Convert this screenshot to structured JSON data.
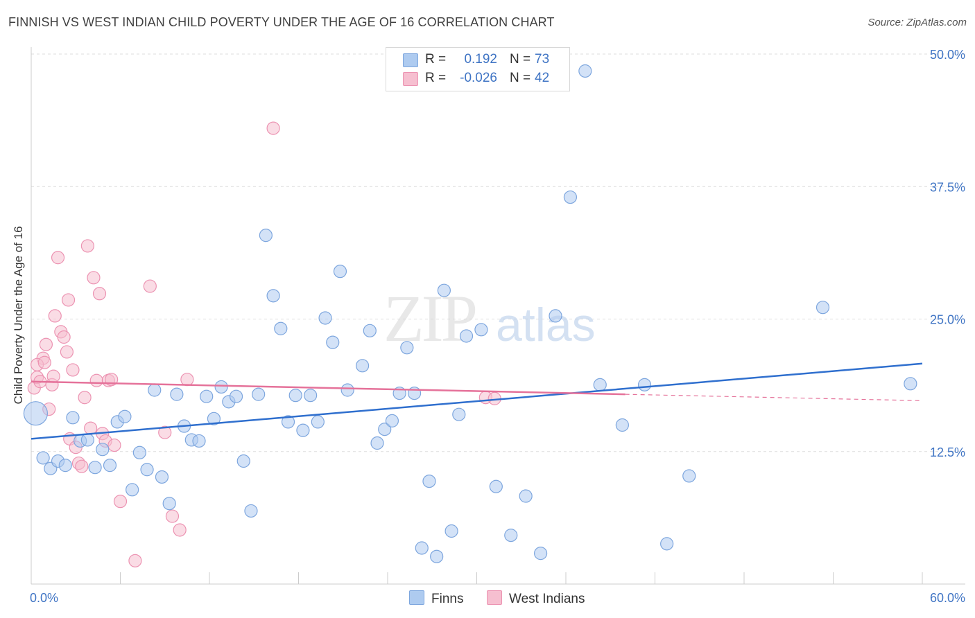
{
  "title": "FINNISH VS WEST INDIAN CHILD POVERTY UNDER THE AGE OF 16 CORRELATION CHART",
  "source": "Source: ZipAtlas.com",
  "watermark": {
    "zip": "ZIP",
    "atlas": "atlas"
  },
  "legend": {
    "rows": [
      {
        "r_label": "R =",
        "r_value": "0.192",
        "n_label": "N =",
        "n_value": "73"
      },
      {
        "r_label": "R =",
        "r_value": "-0.026",
        "n_label": "N =",
        "n_value": "42"
      }
    ]
  },
  "bottom_legend": {
    "finns": "Finns",
    "west_indians": "West Indians"
  },
  "colors": {
    "finns_fill": "#aecbf0",
    "finns_stroke": "#7da6de",
    "finns_line": "#2f6fce",
    "wi_fill": "#f6bfd0",
    "wi_stroke": "#ec93b2",
    "wi_line": "#e5729a",
    "grid": "#dddddd",
    "tick_label": "#3f74c4"
  },
  "chart_data": {
    "type": "scatter",
    "title": "FINNISH VS WEST INDIAN CHILD POVERTY UNDER THE AGE OF 16 CORRELATION CHART",
    "xlabel": "",
    "ylabel": "Child Poverty Under the Age of 16",
    "xlim": [
      0,
      60
    ],
    "ylim": [
      0,
      50
    ],
    "x_tick_labels": [
      "0.0%",
      "60.0%"
    ],
    "y_ticks": [
      12.5,
      25.0,
      37.5,
      50.0
    ],
    "y_tick_labels": [
      "12.5%",
      "25.0%",
      "37.5%",
      "50.0%"
    ],
    "grid": "horizontal dashed",
    "legend_position": "bottom-center",
    "series": [
      {
        "name": "Finns",
        "r": 0.192,
        "n": 73,
        "trend": {
          "x": [
            0,
            60
          ],
          "y": [
            13.7,
            20.8
          ]
        },
        "points": [
          [
            0.3,
            16.1
          ],
          [
            0.8,
            11.9
          ],
          [
            1.3,
            10.9
          ],
          [
            1.8,
            11.6
          ],
          [
            2.3,
            11.2
          ],
          [
            2.8,
            15.7
          ],
          [
            3.3,
            13.5
          ],
          [
            3.8,
            13.6
          ],
          [
            4.3,
            11.0
          ],
          [
            4.8,
            12.7
          ],
          [
            5.3,
            11.2
          ],
          [
            5.8,
            15.3
          ],
          [
            6.3,
            15.8
          ],
          [
            6.8,
            8.9
          ],
          [
            7.3,
            12.4
          ],
          [
            7.8,
            10.8
          ],
          [
            8.3,
            18.3
          ],
          [
            8.8,
            10.1
          ],
          [
            9.3,
            7.6
          ],
          [
            9.8,
            17.9
          ],
          [
            10.3,
            14.9
          ],
          [
            10.8,
            13.6
          ],
          [
            11.3,
            13.5
          ],
          [
            11.8,
            17.7
          ],
          [
            12.3,
            15.6
          ],
          [
            12.8,
            18.6
          ],
          [
            13.3,
            17.2
          ],
          [
            13.8,
            17.7
          ],
          [
            14.3,
            11.6
          ],
          [
            14.8,
            6.9
          ],
          [
            15.3,
            17.9
          ],
          [
            15.8,
            32.9
          ],
          [
            16.3,
            27.2
          ],
          [
            16.8,
            24.1
          ],
          [
            17.3,
            15.3
          ],
          [
            17.8,
            17.8
          ],
          [
            18.3,
            14.5
          ],
          [
            18.8,
            17.8
          ],
          [
            19.3,
            15.3
          ],
          [
            19.8,
            25.1
          ],
          [
            20.3,
            22.8
          ],
          [
            20.8,
            29.5
          ],
          [
            21.3,
            18.3
          ],
          [
            22.3,
            20.6
          ],
          [
            22.8,
            23.9
          ],
          [
            23.3,
            13.3
          ],
          [
            23.8,
            14.6
          ],
          [
            24.3,
            15.4
          ],
          [
            24.8,
            18.0
          ],
          [
            25.3,
            22.3
          ],
          [
            25.8,
            18.0
          ],
          [
            26.3,
            3.4
          ],
          [
            26.8,
            9.7
          ],
          [
            27.3,
            2.6
          ],
          [
            28.3,
            5.0
          ],
          [
            28.8,
            16.0
          ],
          [
            29.3,
            23.4
          ],
          [
            30.3,
            24.0
          ],
          [
            31.3,
            9.2
          ],
          [
            32.3,
            4.6
          ],
          [
            33.3,
            8.3
          ],
          [
            34.3,
            2.9
          ],
          [
            35.3,
            25.3
          ],
          [
            36.3,
            36.5
          ],
          [
            37.3,
            48.4
          ],
          [
            38.3,
            18.8
          ],
          [
            39.8,
            15.0
          ],
          [
            41.3,
            18.8
          ],
          [
            42.8,
            3.8
          ],
          [
            44.3,
            10.2
          ],
          [
            53.3,
            26.1
          ],
          [
            59.2,
            18.9
          ],
          [
            27.8,
            27.7
          ]
        ]
      },
      {
        "name": "West Indians",
        "r": -0.026,
        "n": 42,
        "trend": {
          "x": [
            0,
            40
          ],
          "y": [
            19.1,
            17.9
          ]
        },
        "points": [
          [
            0.2,
            18.5
          ],
          [
            0.4,
            19.5
          ],
          [
            0.6,
            19.1
          ],
          [
            0.8,
            21.3
          ],
          [
            1.0,
            22.6
          ],
          [
            1.2,
            16.5
          ],
          [
            1.4,
            18.8
          ],
          [
            1.6,
            25.3
          ],
          [
            1.8,
            30.8
          ],
          [
            2.0,
            23.8
          ],
          [
            2.2,
            23.3
          ],
          [
            2.4,
            21.9
          ],
          [
            2.6,
            13.7
          ],
          [
            2.8,
            20.2
          ],
          [
            3.0,
            12.9
          ],
          [
            3.2,
            11.4
          ],
          [
            3.4,
            11.1
          ],
          [
            3.6,
            17.6
          ],
          [
            3.8,
            31.9
          ],
          [
            4.0,
            14.7
          ],
          [
            4.2,
            28.9
          ],
          [
            4.4,
            19.2
          ],
          [
            4.6,
            27.4
          ],
          [
            4.8,
            14.2
          ],
          [
            5.0,
            13.5
          ],
          [
            5.2,
            19.2
          ],
          [
            5.4,
            19.3
          ],
          [
            5.6,
            13.1
          ],
          [
            6.0,
            7.8
          ],
          [
            7.0,
            2.2
          ],
          [
            8.0,
            28.1
          ],
          [
            9.0,
            14.3
          ],
          [
            9.5,
            6.4
          ],
          [
            10.0,
            5.1
          ],
          [
            10.5,
            19.3
          ],
          [
            16.3,
            43.0
          ],
          [
            30.6,
            17.6
          ],
          [
            31.2,
            17.5
          ],
          [
            0.4,
            20.7
          ],
          [
            0.9,
            20.9
          ],
          [
            1.5,
            19.6
          ],
          [
            2.5,
            26.8
          ]
        ]
      }
    ]
  }
}
